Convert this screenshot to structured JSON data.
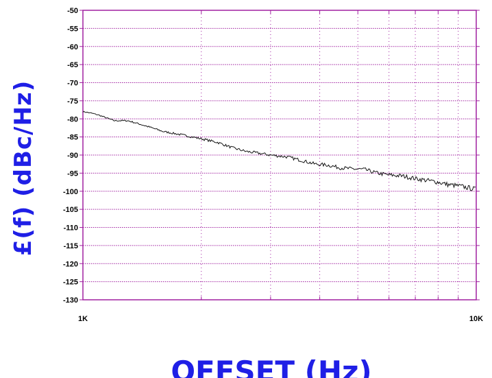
{
  "chart_data": {
    "type": "line",
    "xlabel": "OFFSET (Hz)",
    "ylabel": "£(f) (dBc/Hz)",
    "x_scale": "log",
    "xlim": [
      1000,
      10000
    ],
    "ylim": [
      -130,
      -50
    ],
    "x_ticks": [
      1000,
      10000
    ],
    "x_tick_labels": [
      "1K",
      "10K"
    ],
    "y_ticks": [
      -50,
      -55,
      -60,
      -65,
      -70,
      -75,
      -80,
      -85,
      -90,
      -95,
      -100,
      -105,
      -110,
      -115,
      -120,
      -125,
      -130
    ],
    "grid": true,
    "series": [
      {
        "x": [
          1000,
          1060,
          1100,
          1200,
          1300,
          1400,
          1500,
          1600,
          1700,
          1800,
          2000,
          2200,
          2400,
          2600,
          2800,
          3000,
          3300,
          3600,
          3900,
          4200,
          4500,
          4800,
          5200,
          5600,
          6000,
          6500,
          7000,
          7500,
          8000,
          8500,
          9000,
          9500,
          10000
        ],
        "y": [
          -78,
          -78.5,
          -79,
          -80.5,
          -80.5,
          -81.5,
          -82.5,
          -83.5,
          -84,
          -84.5,
          -85.5,
          -86.5,
          -88,
          -89,
          -89.5,
          -90,
          -90.5,
          -91.5,
          -92.5,
          -92.8,
          -93.5,
          -93.8,
          -94,
          -95,
          -95.5,
          -95.8,
          -96.5,
          -97,
          -97.5,
          -98.2,
          -98.5,
          -99,
          -99.5
        ]
      }
    ]
  }
}
